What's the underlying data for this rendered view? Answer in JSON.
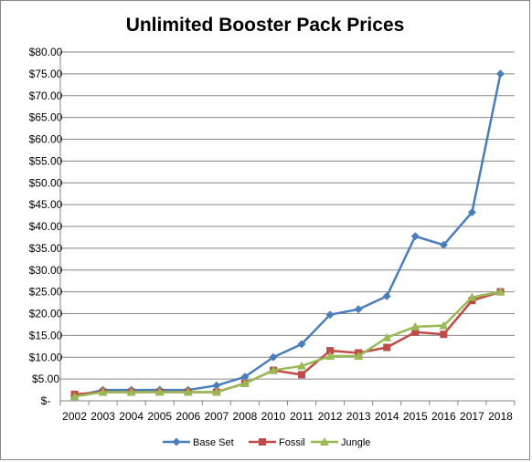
{
  "chart_data": {
    "type": "line",
    "title": "Unlimited Booster Pack Prices",
    "categories": [
      "2002",
      "2003",
      "2004",
      "2005",
      "2006",
      "2007",
      "2008",
      "2010",
      "2011",
      "2012",
      "2013",
      "2014",
      "2015",
      "2016",
      "2017",
      "2018"
    ],
    "y_ticks": [
      "$-",
      "$5.00",
      "$10.00",
      "$15.00",
      "$20.00",
      "$25.00",
      "$30.00",
      "$35.00",
      "$40.00",
      "$45.00",
      "$50.00",
      "$55.00",
      "$60.00",
      "$65.00",
      "$70.00",
      "$75.00",
      "$80.00"
    ],
    "ylim": [
      0,
      80
    ],
    "grid": true,
    "legend_position": "bottom",
    "series": [
      {
        "name": "Base Set",
        "color": "#4a7ebb",
        "marker": "diamond",
        "values": [
          1.0,
          2.5,
          2.5,
          2.5,
          2.5,
          3.5,
          5.5,
          10.0,
          13.0,
          19.75,
          21.0,
          24.0,
          37.75,
          35.75,
          43.25,
          75.0
        ]
      },
      {
        "name": "Fossil",
        "color": "#be4b48",
        "marker": "square",
        "values": [
          1.5,
          2.0,
          2.0,
          2.0,
          2.0,
          2.0,
          4.0,
          7.0,
          6.0,
          11.5,
          11.0,
          12.25,
          15.75,
          15.25,
          23.0,
          25.0
        ]
      },
      {
        "name": "Jungle",
        "color": "#98b954",
        "marker": "triangle",
        "values": [
          1.0,
          2.0,
          2.0,
          2.0,
          2.0,
          2.0,
          4.0,
          7.0,
          8.0,
          10.25,
          10.25,
          14.5,
          17.0,
          17.25,
          23.75,
          25.0
        ]
      }
    ]
  }
}
